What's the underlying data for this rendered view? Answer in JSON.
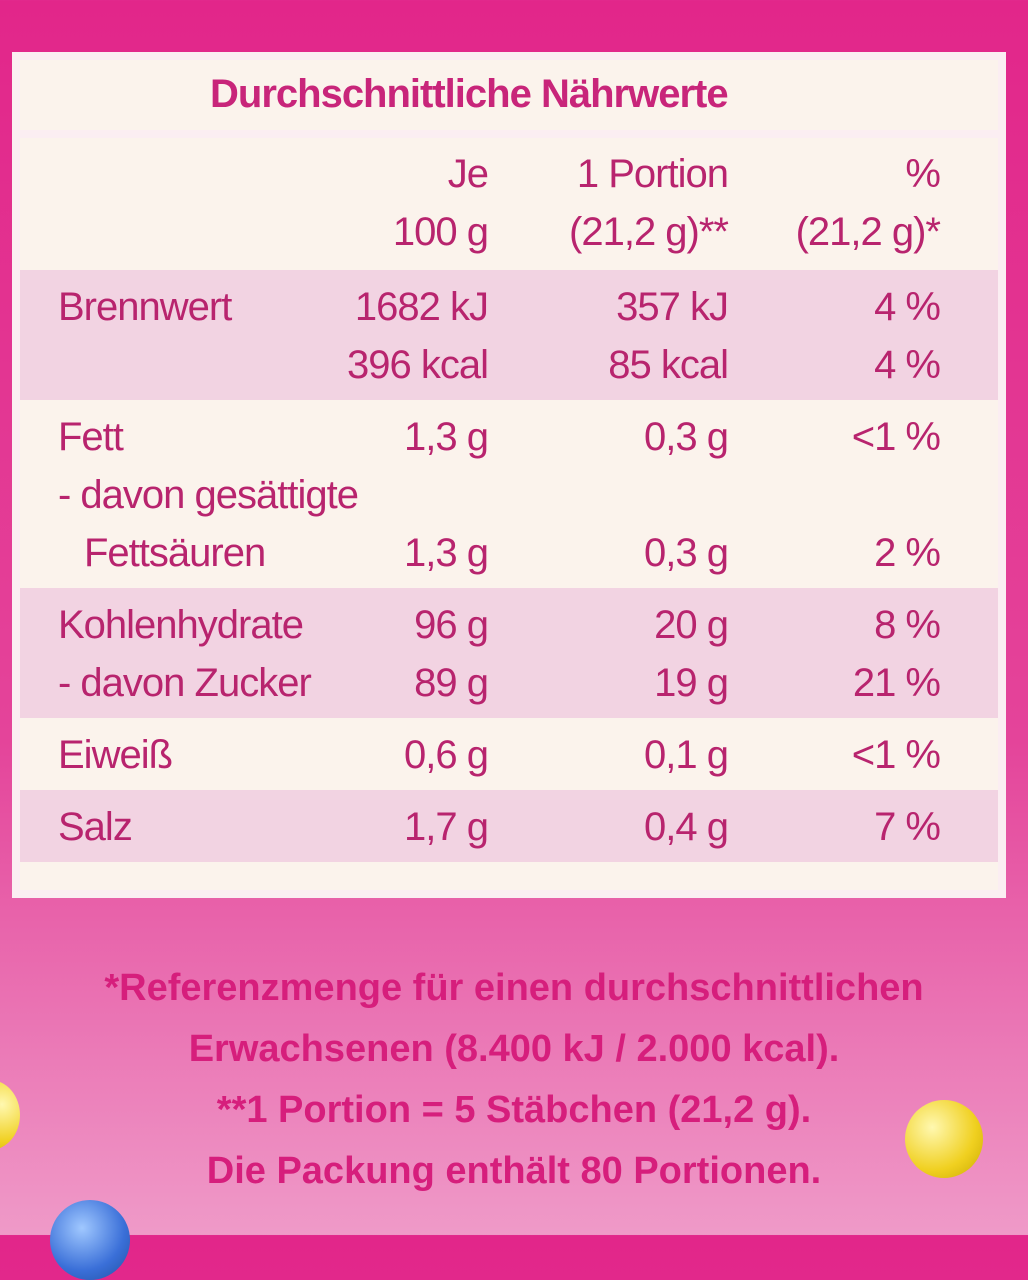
{
  "title": "Durchschnittliche Nährwerte",
  "table": {
    "header": [
      [
        "Je",
        "100 g"
      ],
      [
        "1 Portion",
        "(21,2 g)**"
      ],
      [
        "%",
        "(21,2 g)*"
      ]
    ],
    "groups": [
      {
        "rows": [
          {
            "label": "Brennwert",
            "values": [
              "1682 kJ",
              "357 kJ",
              "4 %"
            ]
          },
          {
            "values": [
              "396 kcal",
              "85 kcal",
              "4 %"
            ]
          }
        ]
      },
      {
        "rows": [
          {
            "label": "Fett",
            "values": [
              "1,3 g",
              "0,3 g",
              "<1 %"
            ]
          },
          {
            "label": "- davon gesättigte"
          },
          {
            "label": "Fettsäuren",
            "values": [
              "1,3 g",
              "0,3 g",
              "2 %"
            ]
          }
        ]
      },
      {
        "rows": [
          {
            "label": "Kohlenhydrate",
            "values": [
              "96 g",
              "20 g",
              "8 %"
            ]
          },
          {
            "label": "- davon Zucker",
            "values": [
              "89 g",
              "19 g",
              "21 %"
            ]
          }
        ]
      },
      {
        "rows": [
          {
            "label": "Eiweiß",
            "values": [
              "0,6 g",
              "0,1 g",
              "<1 %"
            ]
          }
        ]
      },
      {
        "rows": [
          {
            "label": "Salz",
            "values": [
              "1,7 g",
              "0,4 g",
              "7 %"
            ]
          }
        ]
      }
    ]
  },
  "footnotes": [
    "*Referenzmenge für einen durchschnittlichen",
    "Erwachsenen (8.400 kJ / 2.000 kcal).",
    "**1 Portion = 5 Stäbchen (21,2 g).",
    "Die Packung enthält 80 Portionen."
  ]
}
